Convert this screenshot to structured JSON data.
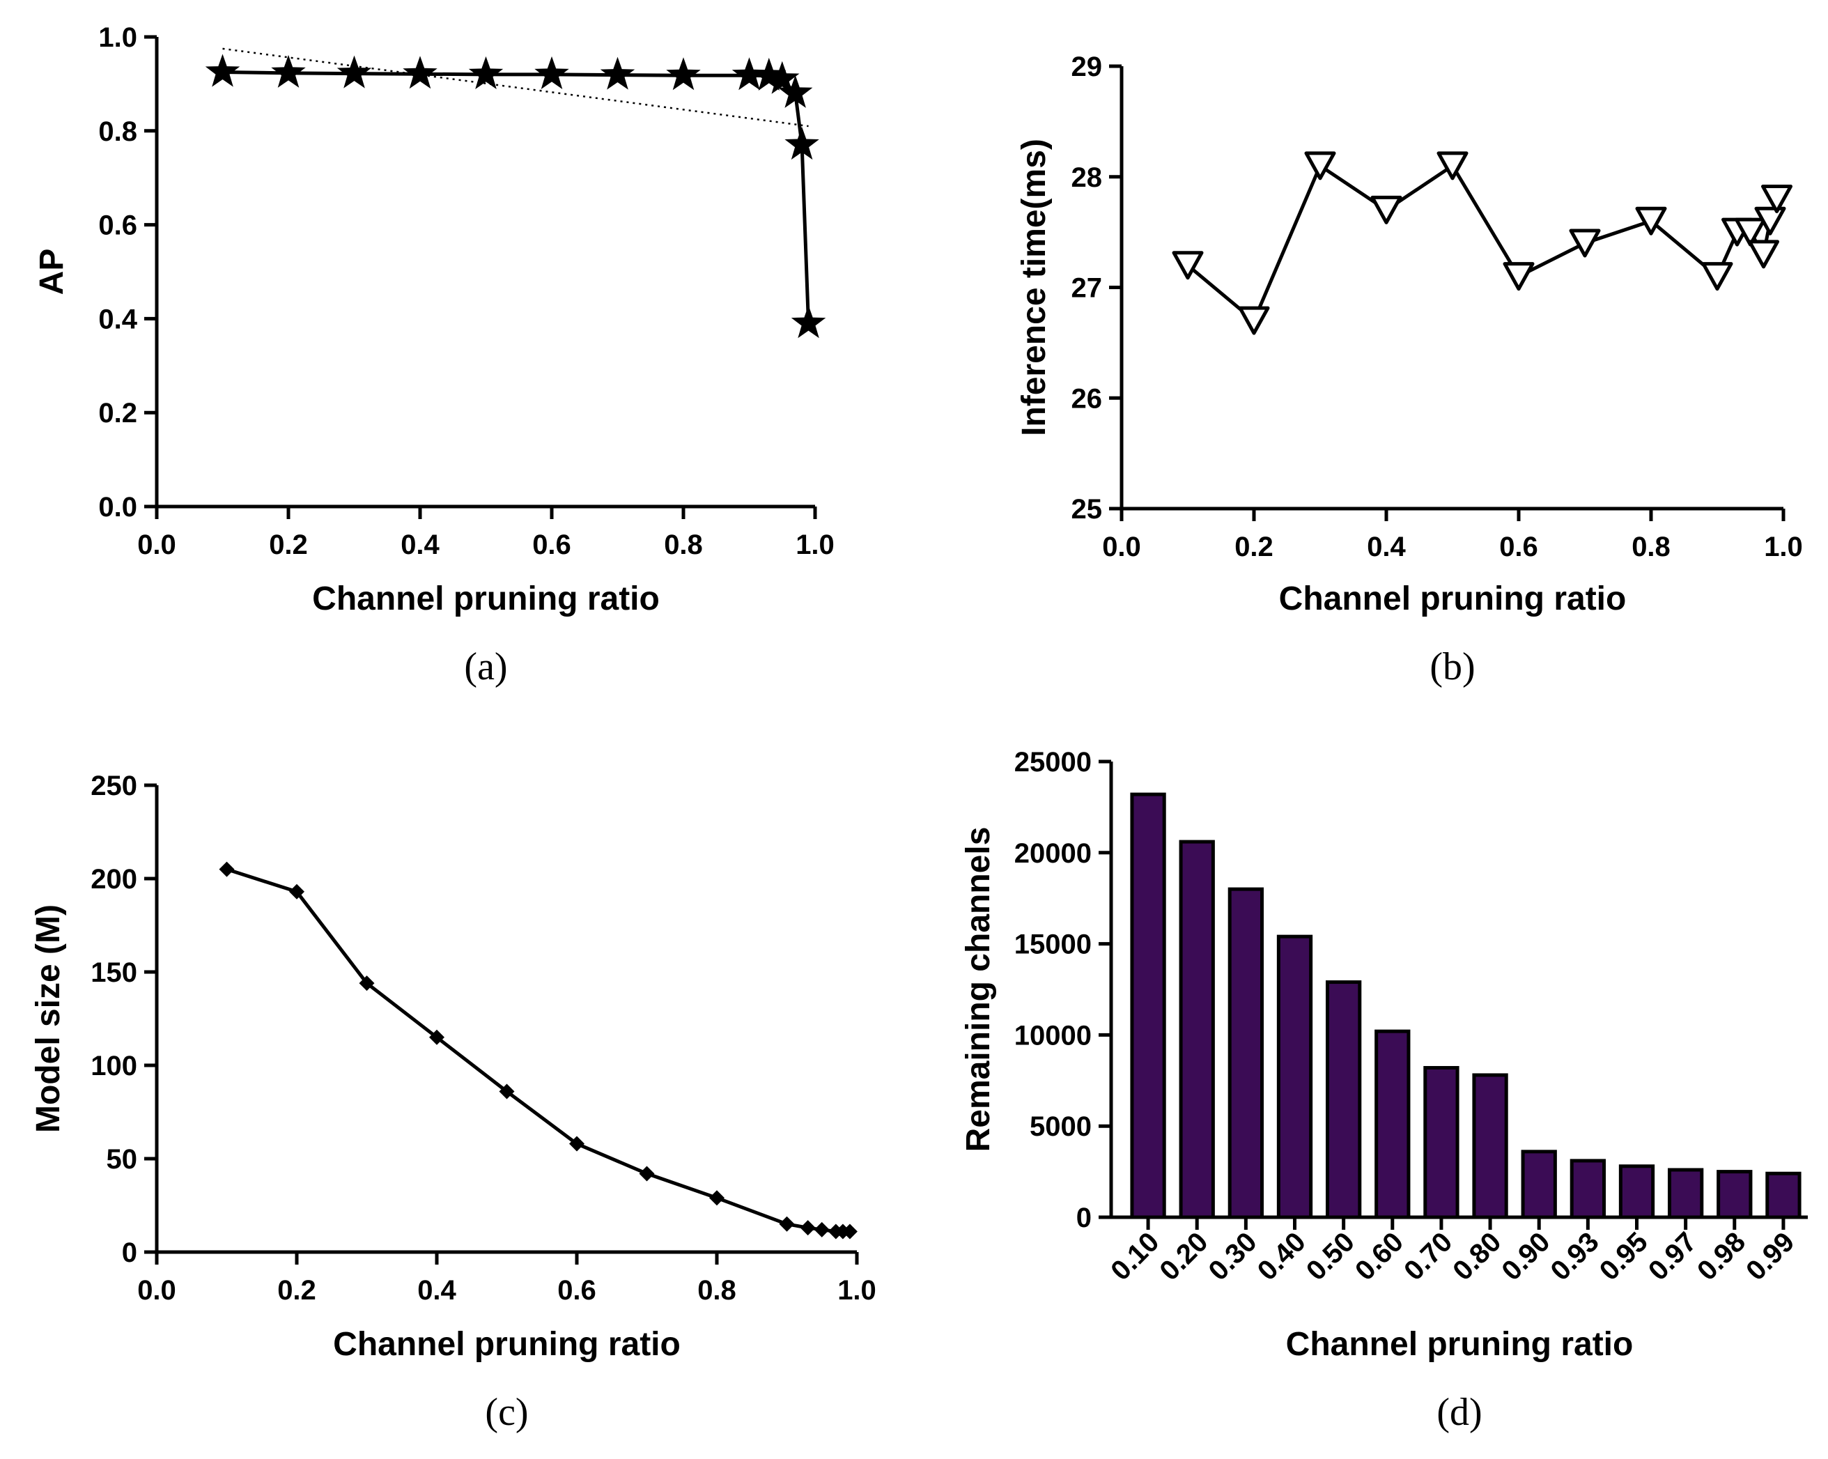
{
  "chart_data": [
    {
      "id": "a",
      "type": "line",
      "panel_label": "(a)",
      "xlabel": "Channel pruning ratio",
      "ylabel": "AP",
      "xlim": [
        0,
        1
      ],
      "ylim": [
        0,
        1
      ],
      "xticks": [
        "0.0",
        "0.2",
        "0.4",
        "0.6",
        "0.8",
        "1.0"
      ],
      "yticks": [
        "0.0",
        "0.2",
        "0.4",
        "0.6",
        "0.8",
        "1.0"
      ],
      "marker": "star",
      "series": [
        {
          "name": "AP",
          "x": [
            0.1,
            0.2,
            0.3,
            0.4,
            0.5,
            0.6,
            0.7,
            0.8,
            0.9,
            0.93,
            0.95,
            0.97,
            0.98,
            0.99
          ],
          "y": [
            0.925,
            0.923,
            0.922,
            0.921,
            0.92,
            0.92,
            0.919,
            0.918,
            0.918,
            0.917,
            0.91,
            0.88,
            0.77,
            0.39
          ]
        }
      ],
      "trendline": {
        "x": [
          0.1,
          0.99
        ],
        "y": [
          0.975,
          0.81
        ],
        "style": "dotted"
      }
    },
    {
      "id": "b",
      "type": "line",
      "panel_label": "(b)",
      "xlabel": "Channel pruning ratio",
      "ylabel": "Inference time(ms)",
      "xlim": [
        0,
        1
      ],
      "ylim": [
        25,
        29
      ],
      "xticks": [
        "0.0",
        "0.2",
        "0.4",
        "0.6",
        "0.8",
        "1.0"
      ],
      "yticks": [
        "25",
        "26",
        "27",
        "28",
        "29"
      ],
      "marker": "triangle-down-open",
      "series": [
        {
          "name": "Inference time",
          "x": [
            0.1,
            0.2,
            0.3,
            0.4,
            0.5,
            0.6,
            0.7,
            0.8,
            0.9,
            0.93,
            0.95,
            0.97,
            0.98,
            0.99
          ],
          "y": [
            27.2,
            26.7,
            28.1,
            27.7,
            28.1,
            27.1,
            27.4,
            27.6,
            27.1,
            27.5,
            27.5,
            27.3,
            27.6,
            27.8
          ]
        }
      ]
    },
    {
      "id": "c",
      "type": "line",
      "panel_label": "(c)",
      "xlabel": "Channel pruning ratio",
      "ylabel": "Model size (M)",
      "xlim": [
        0,
        1
      ],
      "ylim": [
        0,
        250
      ],
      "xticks": [
        "0.0",
        "0.2",
        "0.4",
        "0.6",
        "0.8",
        "1.0"
      ],
      "yticks": [
        "0",
        "50",
        "100",
        "150",
        "200",
        "250"
      ],
      "marker": "diamond",
      "series": [
        {
          "name": "Model size",
          "x": [
            0.1,
            0.2,
            0.3,
            0.4,
            0.5,
            0.6,
            0.7,
            0.8,
            0.9,
            0.93,
            0.95,
            0.97,
            0.98,
            0.99
          ],
          "y": [
            205,
            193,
            144,
            115,
            86,
            58,
            42,
            29,
            15,
            13,
            12,
            11,
            11,
            11
          ]
        }
      ]
    },
    {
      "id": "d",
      "type": "bar",
      "panel_label": "(d)",
      "xlabel": "Channel pruning ratio",
      "ylabel": "Remaining channels",
      "ylim": [
        0,
        25000
      ],
      "yticks": [
        "0",
        "5000",
        "10000",
        "15000",
        "20000",
        "25000"
      ],
      "categories": [
        "0.10",
        "0.20",
        "0.30",
        "0.40",
        "0.50",
        "0.60",
        "0.70",
        "0.80",
        "0.90",
        "0.93",
        "0.95",
        "0.97",
        "0.98",
        "0.99"
      ],
      "values": [
        23200,
        20600,
        18000,
        15400,
        12900,
        10200,
        8200,
        7800,
        3600,
        3100,
        2800,
        2600,
        2500,
        2400
      ],
      "bar_color": "#3b0c55"
    }
  ]
}
